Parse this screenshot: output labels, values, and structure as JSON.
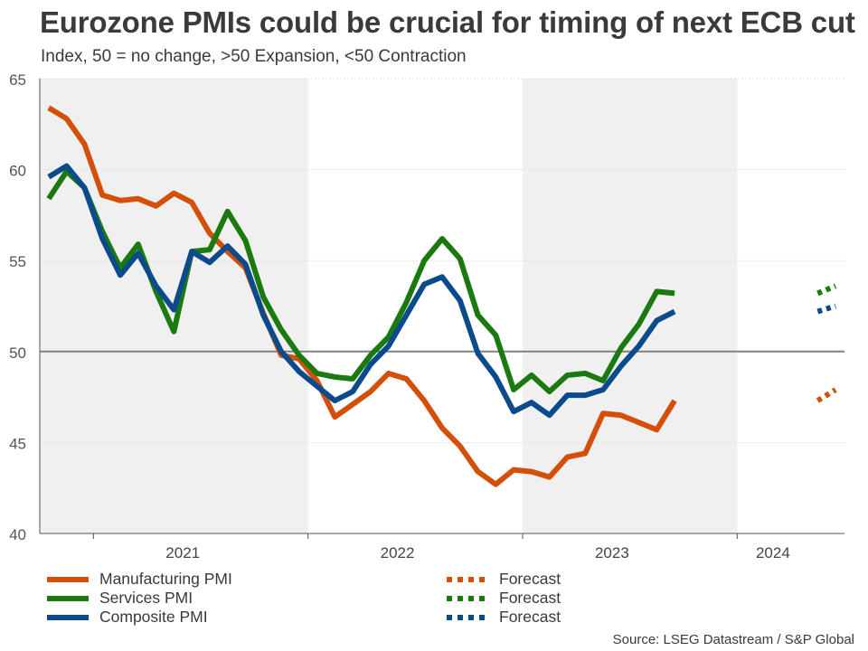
{
  "title": "Eurozone PMIs could be crucial for timing of next ECB cut",
  "subtitle": "Index, 50 = no change, >50 Expansion, <50 Contraction",
  "source": "Source: LSEG Datastream / S&P Global",
  "colors": {
    "manufacturing": "#d4500a",
    "services": "#1a7a10",
    "composite": "#0b4b8c",
    "shading": "#f0f0f0",
    "reference_line": "#808080",
    "grid": "#d8d8d8"
  },
  "legend": {
    "left": [
      {
        "label": "Manufacturing PMI",
        "series": "manufacturing"
      },
      {
        "label": "Services PMI",
        "series": "services"
      },
      {
        "label": "Composite PMI",
        "series": "composite"
      }
    ],
    "right": [
      {
        "label": "Forecast",
        "series": "manufacturing"
      },
      {
        "label": "Forecast",
        "series": "services"
      },
      {
        "label": "Forecast",
        "series": "composite"
      }
    ]
  },
  "chart_data": {
    "type": "line",
    "x_start": "2020-10",
    "x_end": "2024-06",
    "x_ticks": [
      {
        "label": "2021",
        "at": "2021-06"
      },
      {
        "label": "2022",
        "at": "2022-06"
      },
      {
        "label": "2023",
        "at": "2023-06"
      },
      {
        "label": "2024",
        "at": "2024-03"
      }
    ],
    "shaded_years": [
      [
        "2020-10",
        "2021-12"
      ],
      [
        "2023-01",
        "2023-12"
      ]
    ],
    "ylim": [
      40,
      65
    ],
    "yticks": [
      40,
      45,
      50,
      55,
      60,
      65
    ],
    "reference_line": 50,
    "grid": true,
    "series": [
      {
        "name": "Manufacturing PMI",
        "key": "manufacturing",
        "start": "2020-10",
        "values": [
          63.4,
          62.8,
          61.4,
          58.6,
          58.3,
          58.4,
          58.0,
          58.7,
          58.2,
          56.5,
          55.5,
          54.6,
          52.1,
          49.8,
          49.6,
          48.4,
          46.4,
          47.1,
          47.8,
          48.8,
          48.5,
          47.3,
          45.8,
          44.8,
          43.4,
          42.7,
          43.5,
          43.4,
          43.1,
          44.2,
          44.4,
          46.6,
          46.5,
          46.1,
          45.7,
          47.3
        ],
        "forecast": {
          "start": "2024-05",
          "values": [
            47.3,
            47.9
          ]
        }
      },
      {
        "name": "Services PMI",
        "key": "services",
        "start": "2020-10",
        "values": [
          58.4,
          59.9,
          59.0,
          56.6,
          54.6,
          55.9,
          53.3,
          51.1,
          55.5,
          55.6,
          57.7,
          56.1,
          53.0,
          51.2,
          49.8,
          48.8,
          48.6,
          48.5,
          49.8,
          50.8,
          52.7,
          55.0,
          56.2,
          55.1,
          52.0,
          50.9,
          47.9,
          48.7,
          47.8,
          48.7,
          48.8,
          48.4,
          50.2,
          51.5,
          53.3,
          53.2
        ],
        "forecast": {
          "start": "2024-05",
          "values": [
            53.2,
            53.6
          ]
        }
      },
      {
        "name": "Composite PMI",
        "key": "composite",
        "start": "2020-10",
        "values": [
          59.6,
          60.2,
          59.0,
          56.2,
          54.2,
          55.4,
          53.6,
          52.3,
          55.5,
          54.9,
          55.8,
          54.8,
          52.0,
          50.0,
          48.9,
          48.1,
          47.3,
          47.8,
          49.3,
          50.3,
          52.0,
          53.7,
          54.1,
          52.8,
          49.9,
          48.6,
          46.7,
          47.2,
          46.5,
          47.6,
          47.6,
          47.9,
          49.2,
          50.3,
          51.7,
          52.2
        ],
        "forecast": {
          "start": "2024-05",
          "values": [
            52.2,
            52.5
          ]
        }
      }
    ]
  }
}
